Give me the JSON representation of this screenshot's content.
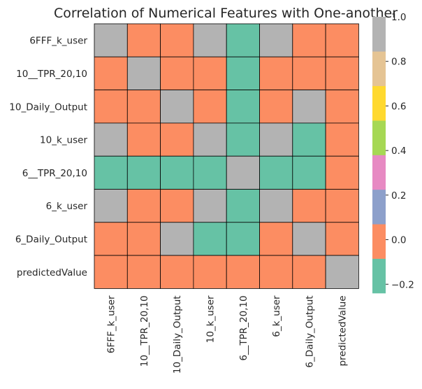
{
  "chart_data": {
    "type": "heatmap",
    "title": "Correlation of Numerical Features with One-another",
    "row_labels": [
      "6FFF_k_user",
      "10__TPR_20,10",
      "10_Daily_Output",
      "10_k_user",
      "6__TPR_20,10",
      "6_k_user",
      "6_Daily_Output",
      "predictedValue"
    ],
    "col_labels": [
      "6FFF_k_user",
      "10__TPR_20,10",
      "10_Daily_Output",
      "10_k_user",
      "6__TPR_20,10",
      "6_k_user",
      "6_Daily_Output",
      "predictedValue"
    ],
    "values": [
      [
        1.0,
        -0.05,
        -0.05,
        0.9,
        -0.2,
        0.9,
        -0.05,
        -0.02
      ],
      [
        -0.05,
        1.0,
        -0.05,
        -0.05,
        -0.2,
        -0.05,
        -0.05,
        -0.02
      ],
      [
        -0.05,
        -0.05,
        1.0,
        -0.05,
        -0.2,
        -0.05,
        0.9,
        -0.02
      ],
      [
        0.9,
        -0.05,
        -0.05,
        1.0,
        -0.2,
        1.0,
        -0.2,
        -0.02
      ],
      [
        -0.2,
        -0.2,
        -0.2,
        -0.2,
        1.0,
        -0.2,
        -0.2,
        -0.02
      ],
      [
        0.9,
        -0.05,
        -0.05,
        1.0,
        -0.2,
        1.0,
        -0.05,
        -0.02
      ],
      [
        -0.05,
        -0.05,
        0.9,
        -0.2,
        -0.2,
        -0.05,
        1.0,
        -0.02
      ],
      [
        -0.02,
        -0.02,
        -0.02,
        -0.02,
        -0.02,
        -0.02,
        -0.02,
        1.0
      ]
    ],
    "colorbar": {
      "range": [
        -0.24,
        1.0
      ],
      "ticks": [
        -0.2,
        0.0,
        0.2,
        0.4,
        0.6,
        0.8,
        1.0
      ],
      "tick_labels": [
        "−0.2",
        "0.0",
        "0.2",
        "0.4",
        "0.6",
        "0.8",
        "1.0"
      ],
      "palette": [
        "#66c2a5",
        "#fc8d62",
        "#8da0cb",
        "#e78ac3",
        "#a6d854",
        "#ffd92f",
        "#e5c494",
        "#b3b3b3"
      ]
    }
  }
}
